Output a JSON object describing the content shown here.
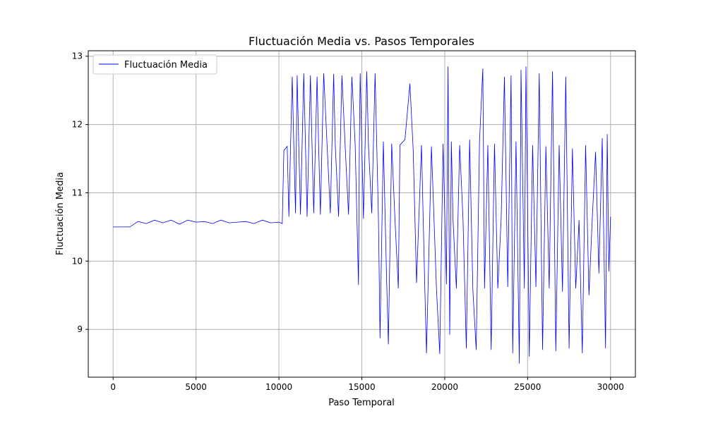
{
  "chart_data": {
    "type": "line",
    "title": "Fluctuación Media vs. Pasos Temporales",
    "xlabel": "Paso Temporal",
    "ylabel": "Fluctuación Media",
    "xlim": [
      -1500,
      31500
    ],
    "ylim": [
      8.3,
      13.08
    ],
    "xticks": [
      0,
      5000,
      10000,
      15000,
      20000,
      25000,
      30000
    ],
    "xtick_labels": [
      "0",
      "5000",
      "10000",
      "15000",
      "20000",
      "25000",
      "30000"
    ],
    "yticks": [
      9,
      10,
      11,
      12,
      13
    ],
    "ytick_labels": [
      "9",
      "10",
      "11",
      "12",
      "13"
    ],
    "grid": true,
    "legend_position": "top-left",
    "series": [
      {
        "name": "Fluctuación Media",
        "color": "#0000ff",
        "x": [
          0,
          1000,
          1500,
          2000,
          2500,
          3000,
          3500,
          4000,
          4500,
          5000,
          5500,
          6000,
          6500,
          7000,
          7500,
          8000,
          8500,
          9000,
          9500,
          10000,
          10200,
          10300,
          10500,
          10600,
          10800,
          10900,
          11000,
          11100,
          11200,
          11300,
          11500,
          11600,
          11700,
          11900,
          12000,
          12100,
          12300,
          12400,
          12500,
          12700,
          12900,
          13100,
          13300,
          13400,
          13600,
          13800,
          14000,
          14200,
          14400,
          14600,
          14800,
          14850,
          14900,
          15100,
          15300,
          15400,
          15600,
          15800,
          16000,
          16100,
          16300,
          16500,
          16600,
          16800,
          17000,
          17200,
          17300,
          17600,
          17900,
          18100,
          18300,
          18600,
          18800,
          18900,
          19200,
          19500,
          19700,
          19900,
          20100,
          20200,
          20300,
          20400,
          20500,
          20700,
          20900,
          21100,
          21300,
          21500,
          21700,
          21900,
          22100,
          22300,
          22400,
          22600,
          22800,
          23000,
          23200,
          23400,
          23600,
          23800,
          24000,
          24100,
          24300,
          24500,
          24600,
          24800,
          24900,
          25100,
          25300,
          25500,
          25700,
          25900,
          26100,
          26300,
          26500,
          26700,
          26900,
          27100,
          27300,
          27500,
          27700,
          27900,
          28100,
          28300,
          28500,
          28700,
          28900,
          29100,
          29300,
          29500,
          29700,
          29800,
          29900,
          30000
        ],
        "values": [
          10.5,
          10.5,
          10.58,
          10.55,
          10.6,
          10.56,
          10.6,
          10.54,
          10.6,
          10.57,
          10.58,
          10.55,
          10.6,
          10.56,
          10.57,
          10.58,
          10.55,
          10.6,
          10.56,
          10.57,
          10.55,
          11.62,
          11.68,
          10.65,
          12.7,
          11.68,
          10.7,
          12.72,
          11.65,
          10.68,
          12.75,
          11.7,
          10.65,
          12.72,
          11.68,
          10.7,
          12.7,
          11.66,
          10.68,
          12.75,
          11.72,
          10.7,
          12.74,
          11.7,
          10.65,
          12.72,
          11.66,
          10.68,
          12.7,
          11.7,
          9.65,
          11.7,
          12.75,
          10.62,
          12.78,
          11.7,
          10.7,
          12.75,
          10.65,
          8.87,
          11.75,
          9.7,
          8.78,
          11.72,
          10.6,
          9.6,
          11.7,
          11.78,
          12.6,
          11.62,
          9.68,
          11.7,
          9.62,
          8.65,
          11.68,
          9.6,
          8.64,
          11.72,
          9.66,
          12.85,
          8.92,
          11.75,
          10.6,
          9.6,
          11.7,
          10.62,
          8.72,
          11.78,
          9.58,
          8.7,
          11.75,
          12.82,
          9.6,
          11.7,
          8.7,
          11.72,
          9.6,
          10.6,
          12.7,
          9.62,
          12.72,
          8.65,
          11.75,
          8.5,
          12.8,
          9.6,
          12.85,
          8.6,
          11.7,
          9.62,
          12.75,
          8.7,
          11.68,
          9.6,
          12.78,
          8.68,
          11.7,
          9.55,
          12.7,
          8.72,
          11.65,
          9.6,
          10.6,
          8.65,
          11.7,
          9.5,
          10.62,
          11.6,
          9.82,
          11.8,
          8.72,
          11.86,
          9.85,
          10.65
        ]
      }
    ]
  }
}
